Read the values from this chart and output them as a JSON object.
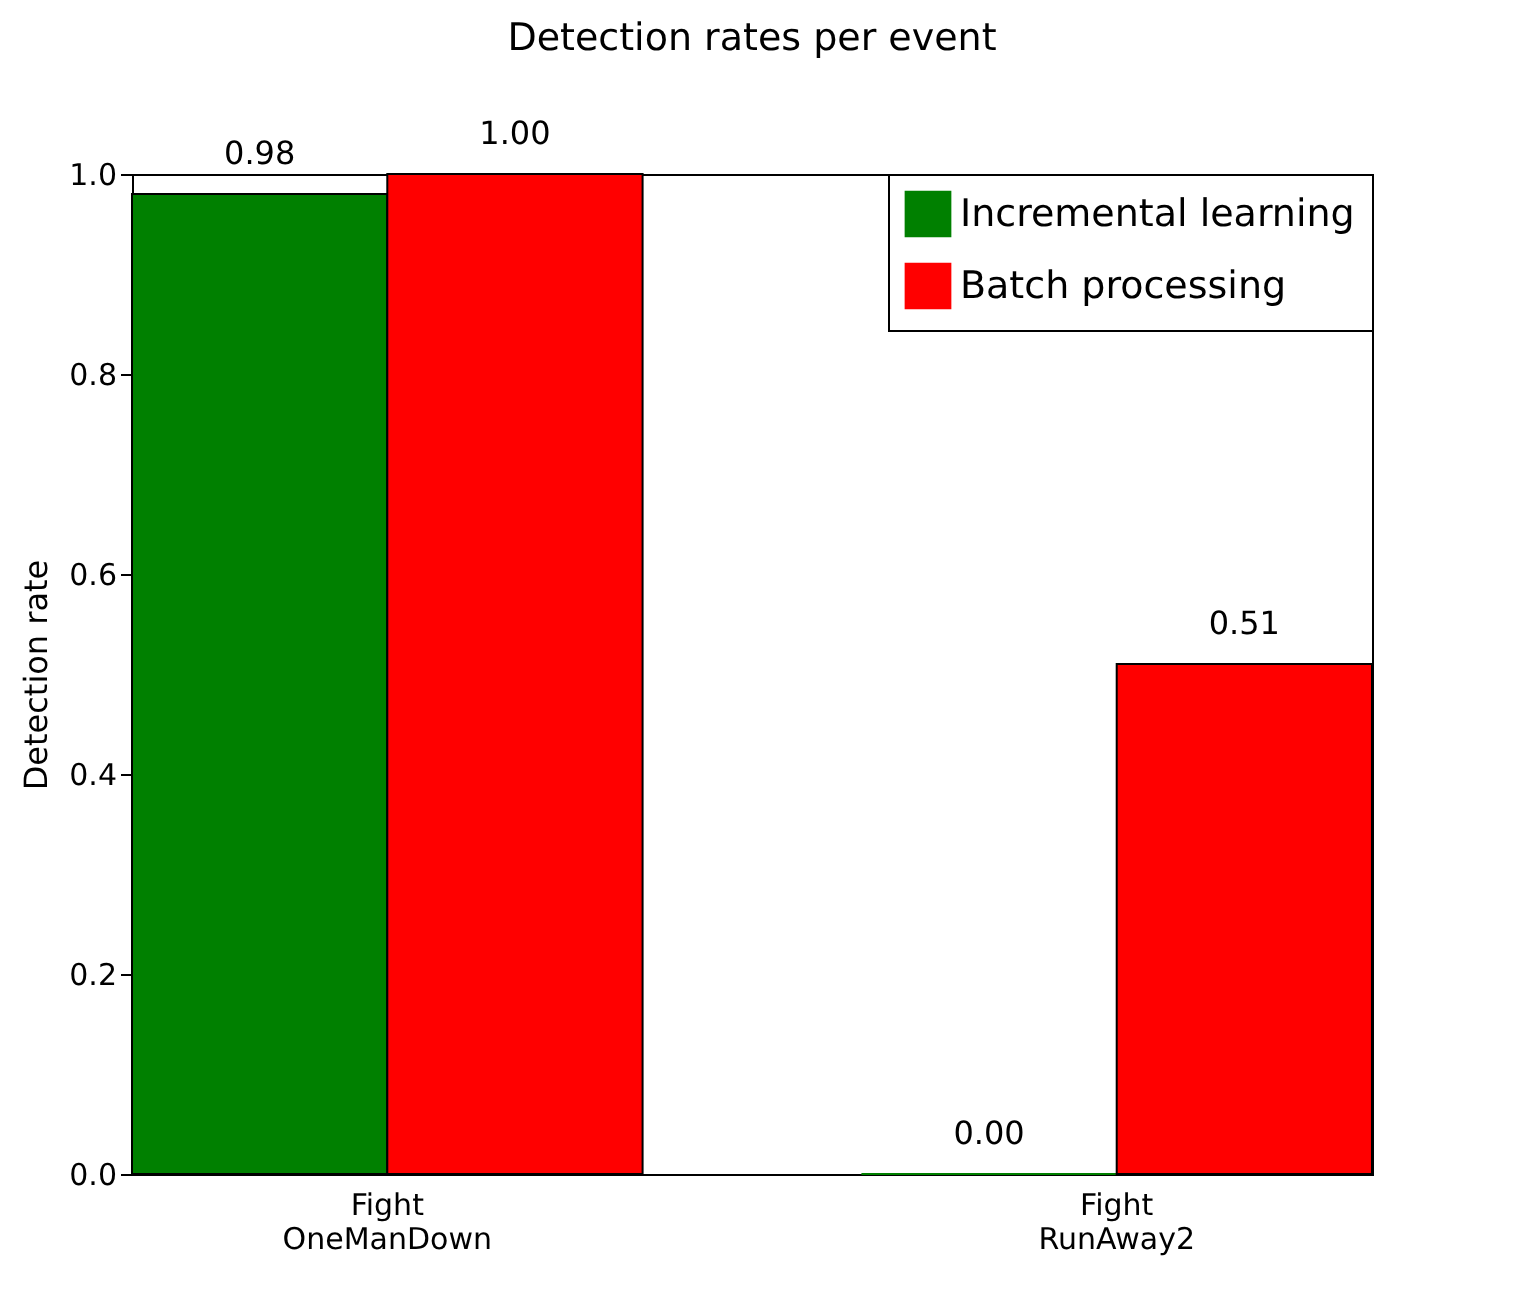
{
  "chart_data": {
    "type": "bar",
    "title": "Detection rates per event",
    "ylabel": "Detection rate",
    "categories": [
      "Fight\nOneManDown",
      "Fight\nRunAway2"
    ],
    "series": [
      {
        "name": "Incremental learning",
        "color": "#008000",
        "values": [
          0.98,
          0.0
        ],
        "value_labels": [
          "0.98",
          "0.00"
        ]
      },
      {
        "name": "Batch processing",
        "color": "#ff0000",
        "values": [
          1.0,
          0.51
        ],
        "value_labels": [
          "1.00",
          "0.51"
        ]
      }
    ],
    "ylim": [
      0,
      1
    ],
    "yticks": [
      {
        "value": 0,
        "label": "0.0"
      },
      {
        "value": 0.2,
        "label": "0.2"
      },
      {
        "value": 0.4,
        "label": "0.4"
      },
      {
        "value": 0.6,
        "label": "0.6"
      },
      {
        "value": 0.8,
        "label": "0.8"
      },
      {
        "value": 1,
        "label": "1.0"
      }
    ],
    "grid": false,
    "legend": "top right"
  }
}
